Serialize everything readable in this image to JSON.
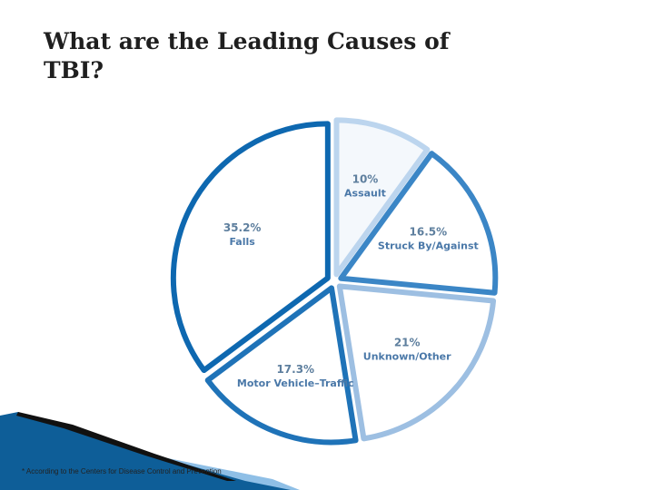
{
  "slide": {
    "title": "What are the Leading Causes of TBI?",
    "footnote": "* According to the Centers for Disease Control and Prevention"
  },
  "colors": {
    "assault": "#bcd5ee",
    "struck": "#3b86c6",
    "unknown": "#9dbfe2",
    "motor": "#1f73b8",
    "falls": "#0e68b0",
    "label": "#4a78a8",
    "footer_dark": "#0e5e98",
    "footer_mid": "#2f87c8"
  },
  "chart_data": {
    "type": "pie",
    "slices": [
      {
        "label": "Assault",
        "value": 10,
        "value_label": "10%"
      },
      {
        "label": "Struck By/Against",
        "value": 16.5,
        "value_label": "16.5%"
      },
      {
        "label": "Unknown/Other",
        "value": 21,
        "value_label": "21%"
      },
      {
        "label": "Motor Vehicle–Traffic",
        "value": 17.3,
        "value_label": "17.3%"
      },
      {
        "label": "Falls",
        "value": 35.2,
        "value_label": "35.2%"
      }
    ],
    "start_angle_deg": 0,
    "direction": "clockwise",
    "exploded": true
  }
}
